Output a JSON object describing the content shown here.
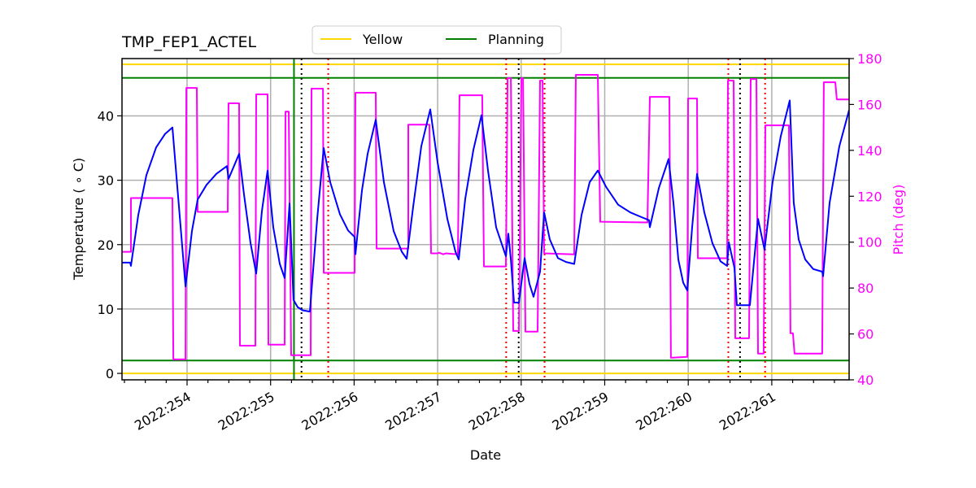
{
  "chart_data": {
    "type": "line",
    "title": "TMP_FEP1_ACTEL",
    "xlabel": "Date",
    "ylabel": "Temperature ($^\\circ$C)",
    "ylabel_display": "Temperature ( ∘ C)",
    "ylabel_right": "Pitch (deg)",
    "xlim": [
      253.221,
      261.926
    ],
    "ylim": [
      -1.0,
      48.9
    ],
    "ylim_right": [
      40,
      180
    ],
    "x_ticks": [
      {
        "value": 254,
        "label": "2022:254"
      },
      {
        "value": 255,
        "label": "2022:255"
      },
      {
        "value": 256,
        "label": "2022:256"
      },
      {
        "value": 257,
        "label": "2022:257"
      },
      {
        "value": 258,
        "label": "2022:258"
      },
      {
        "value": 259,
        "label": "2022:259"
      },
      {
        "value": 260,
        "label": "2022:260"
      },
      {
        "value": 261,
        "label": "2022:261"
      }
    ],
    "x_minor_tick_step": 0.25,
    "y_ticks": [
      0,
      10,
      20,
      30,
      40
    ],
    "y_ticks_right": [
      40,
      60,
      80,
      100,
      120,
      140,
      160,
      180
    ],
    "grid": true,
    "legend": {
      "position": "top-center-outside",
      "entries": [
        {
          "label": "Yellow",
          "color": "#ffd700"
        },
        {
          "label": "Planning",
          "color": "#008000"
        }
      ]
    },
    "limits": [
      {
        "name": "Yellow",
        "value": 48.0,
        "color": "#ffd700"
      },
      {
        "name": "Yellow",
        "value": 0.0,
        "color": "#ffd700"
      },
      {
        "name": "Planning",
        "value": 45.9,
        "color": "#008000"
      },
      {
        "name": "Planning",
        "value": 2.0,
        "color": "#008000"
      }
    ],
    "vertical_lines": [
      {
        "x": 255.28,
        "color": "#008000",
        "style": "solid"
      },
      {
        "x": 255.37,
        "color": "#000000",
        "style": "dotted"
      },
      {
        "x": 255.69,
        "color": "#ff0000",
        "style": "dotted"
      },
      {
        "x": 257.82,
        "color": "#ff0000",
        "style": "dotted"
      },
      {
        "x": 257.97,
        "color": "#000000",
        "style": "dotted"
      },
      {
        "x": 258.28,
        "color": "#ff0000",
        "style": "dotted"
      },
      {
        "x": 260.48,
        "color": "#ff0000",
        "style": "dotted"
      },
      {
        "x": 260.62,
        "color": "#000000",
        "style": "dotted"
      },
      {
        "x": 260.92,
        "color": "#ff0000",
        "style": "dotted"
      }
    ],
    "series": [
      {
        "name": "TMP_FEP1_ACTEL",
        "axis": "left",
        "color": "#0000ff",
        "points": [
          [
            253.221,
            17.2
          ],
          [
            253.318,
            17.2
          ],
          [
            253.328,
            16.7
          ],
          [
            253.416,
            24.6
          ],
          [
            253.513,
            30.8
          ],
          [
            253.63,
            35.1
          ],
          [
            253.737,
            37.2
          ],
          [
            253.825,
            38.2
          ],
          [
            253.981,
            13.5
          ],
          [
            254.058,
            22.1
          ],
          [
            254.127,
            27.0
          ],
          [
            254.234,
            29.3
          ],
          [
            254.351,
            31.0
          ],
          [
            254.477,
            32.2
          ],
          [
            254.497,
            30.2
          ],
          [
            254.623,
            34.1
          ],
          [
            254.682,
            27.8
          ],
          [
            254.76,
            20.2
          ],
          [
            254.828,
            15.5
          ],
          [
            254.896,
            25.2
          ],
          [
            254.964,
            31.5
          ],
          [
            255.032,
            22.7
          ],
          [
            255.11,
            17.0
          ],
          [
            255.168,
            14.8
          ],
          [
            255.227,
            26.4
          ],
          [
            255.275,
            11.4
          ],
          [
            255.324,
            10.3
          ],
          [
            255.383,
            9.8
          ],
          [
            255.47,
            9.6
          ],
          [
            255.558,
            24.0
          ],
          [
            255.636,
            35.0
          ],
          [
            255.714,
            29.7
          ],
          [
            255.831,
            24.7
          ],
          [
            255.928,
            22.2
          ],
          [
            256.006,
            21.2
          ],
          [
            256.016,
            18.5
          ],
          [
            256.093,
            28.4
          ],
          [
            256.162,
            34.1
          ],
          [
            256.259,
            39.4
          ],
          [
            256.356,
            29.7
          ],
          [
            256.473,
            22.1
          ],
          [
            256.571,
            18.9
          ],
          [
            256.629,
            17.8
          ],
          [
            256.707,
            25.9
          ],
          [
            256.804,
            35.3
          ],
          [
            256.911,
            41.0
          ],
          [
            256.999,
            32.8
          ],
          [
            257.116,
            24.0
          ],
          [
            257.213,
            18.9
          ],
          [
            257.252,
            17.7
          ],
          [
            257.33,
            27.1
          ],
          [
            257.427,
            34.7
          ],
          [
            257.525,
            40.1
          ],
          [
            257.603,
            31.5
          ],
          [
            257.7,
            22.7
          ],
          [
            257.817,
            18.2
          ],
          [
            257.846,
            21.7
          ],
          [
            257.876,
            17.7
          ],
          [
            257.914,
            11.0
          ],
          [
            257.973,
            11.0
          ],
          [
            258.041,
            17.9
          ],
          [
            258.099,
            13.9
          ],
          [
            258.148,
            11.9
          ],
          [
            258.226,
            15.8
          ],
          [
            258.275,
            25.0
          ],
          [
            258.343,
            20.8
          ],
          [
            258.44,
            17.9
          ],
          [
            258.537,
            17.3
          ],
          [
            258.635,
            17.0
          ],
          [
            258.722,
            24.6
          ],
          [
            258.82,
            29.7
          ],
          [
            258.917,
            31.5
          ],
          [
            259.015,
            29.0
          ],
          [
            259.161,
            26.2
          ],
          [
            259.307,
            25.0
          ],
          [
            259.453,
            24.2
          ],
          [
            259.531,
            23.8
          ],
          [
            259.54,
            22.7
          ],
          [
            259.648,
            28.8
          ],
          [
            259.764,
            33.3
          ],
          [
            259.823,
            26.5
          ],
          [
            259.881,
            17.7
          ],
          [
            259.94,
            14.1
          ],
          [
            259.988,
            12.9
          ],
          [
            260.047,
            22.7
          ],
          [
            260.105,
            31.0
          ],
          [
            260.193,
            25.0
          ],
          [
            260.29,
            20.2
          ],
          [
            260.387,
            17.4
          ],
          [
            260.465,
            16.7
          ],
          [
            260.485,
            20.4
          ],
          [
            260.553,
            16.4
          ],
          [
            260.582,
            10.6
          ],
          [
            260.738,
            10.6
          ],
          [
            260.835,
            24.0
          ],
          [
            260.913,
            19.2
          ],
          [
            261.01,
            29.7
          ],
          [
            261.107,
            36.8
          ],
          [
            261.215,
            42.4
          ],
          [
            261.263,
            26.5
          ],
          [
            261.322,
            20.8
          ],
          [
            261.4,
            17.7
          ],
          [
            261.497,
            16.2
          ],
          [
            261.604,
            15.8
          ],
          [
            261.614,
            15.1
          ],
          [
            261.692,
            26.5
          ],
          [
            261.809,
            35.3
          ],
          [
            261.926,
            40.9
          ]
        ]
      },
      {
        "name": "Pitch",
        "axis": "right",
        "color": "#ff00ff",
        "points": [
          [
            253.221,
            95.8
          ],
          [
            253.328,
            95.8
          ],
          [
            253.328,
            119.2
          ],
          [
            253.825,
            119.2
          ],
          [
            253.835,
            48.9
          ],
          [
            253.981,
            48.9
          ],
          [
            253.991,
            167.2
          ],
          [
            254.117,
            167.2
          ],
          [
            254.127,
            113.2
          ],
          [
            254.487,
            113.2
          ],
          [
            254.497,
            160.5
          ],
          [
            254.623,
            160.5
          ],
          [
            254.633,
            54.9
          ],
          [
            254.818,
            54.9
          ],
          [
            254.828,
            164.4
          ],
          [
            254.964,
            164.4
          ],
          [
            254.974,
            55.3
          ],
          [
            255.168,
            55.3
          ],
          [
            255.178,
            156.9
          ],
          [
            255.217,
            156.9
          ],
          [
            255.246,
            50.7
          ],
          [
            255.48,
            50.7
          ],
          [
            255.49,
            166.9
          ],
          [
            255.627,
            166.9
          ],
          [
            255.636,
            86.6
          ],
          [
            256.006,
            86.6
          ],
          [
            256.016,
            165.1
          ],
          [
            256.259,
            165.1
          ],
          [
            256.269,
            97.2
          ],
          [
            256.648,
            97.2
          ],
          [
            256.648,
            151.2
          ],
          [
            256.902,
            151.2
          ],
          [
            256.921,
            95.1
          ],
          [
            256.999,
            95.1
          ],
          [
            257.018,
            95.4
          ],
          [
            257.067,
            94.7
          ],
          [
            257.096,
            95.1
          ],
          [
            257.242,
            94.7
          ],
          [
            257.262,
            164.0
          ],
          [
            257.534,
            164.0
          ],
          [
            257.554,
            89.4
          ],
          [
            257.817,
            89.4
          ],
          [
            257.837,
            171.5
          ],
          [
            257.876,
            171.5
          ],
          [
            257.905,
            61.3
          ],
          [
            257.973,
            61.3
          ],
          [
            258.002,
            171.5
          ],
          [
            258.022,
            171.5
          ],
          [
            258.051,
            61.0
          ],
          [
            258.197,
            61.0
          ],
          [
            258.226,
            170.4
          ],
          [
            258.256,
            170.4
          ],
          [
            258.275,
            95.1
          ],
          [
            258.635,
            94.7
          ],
          [
            258.654,
            172.9
          ],
          [
            258.917,
            172.9
          ],
          [
            258.946,
            108.9
          ],
          [
            259.511,
            108.6
          ],
          [
            259.54,
            163.3
          ],
          [
            259.774,
            163.3
          ],
          [
            259.793,
            49.6
          ],
          [
            259.988,
            50.0
          ],
          [
            259.998,
            162.6
          ],
          [
            260.105,
            162.6
          ],
          [
            260.115,
            93.0
          ],
          [
            260.465,
            93.0
          ],
          [
            260.475,
            170.4
          ],
          [
            260.543,
            170.4
          ],
          [
            260.563,
            58.1
          ],
          [
            260.728,
            58.1
          ],
          [
            260.748,
            171.1
          ],
          [
            260.816,
            171.1
          ],
          [
            260.835,
            51.4
          ],
          [
            260.903,
            51.4
          ],
          [
            260.923,
            150.9
          ],
          [
            261.205,
            150.9
          ],
          [
            261.224,
            60.3
          ],
          [
            261.253,
            60.3
          ],
          [
            261.273,
            51.4
          ],
          [
            261.604,
            51.4
          ],
          [
            261.623,
            169.7
          ],
          [
            261.76,
            169.7
          ],
          [
            261.779,
            162.2
          ],
          [
            261.926,
            162.2
          ]
        ]
      }
    ]
  }
}
